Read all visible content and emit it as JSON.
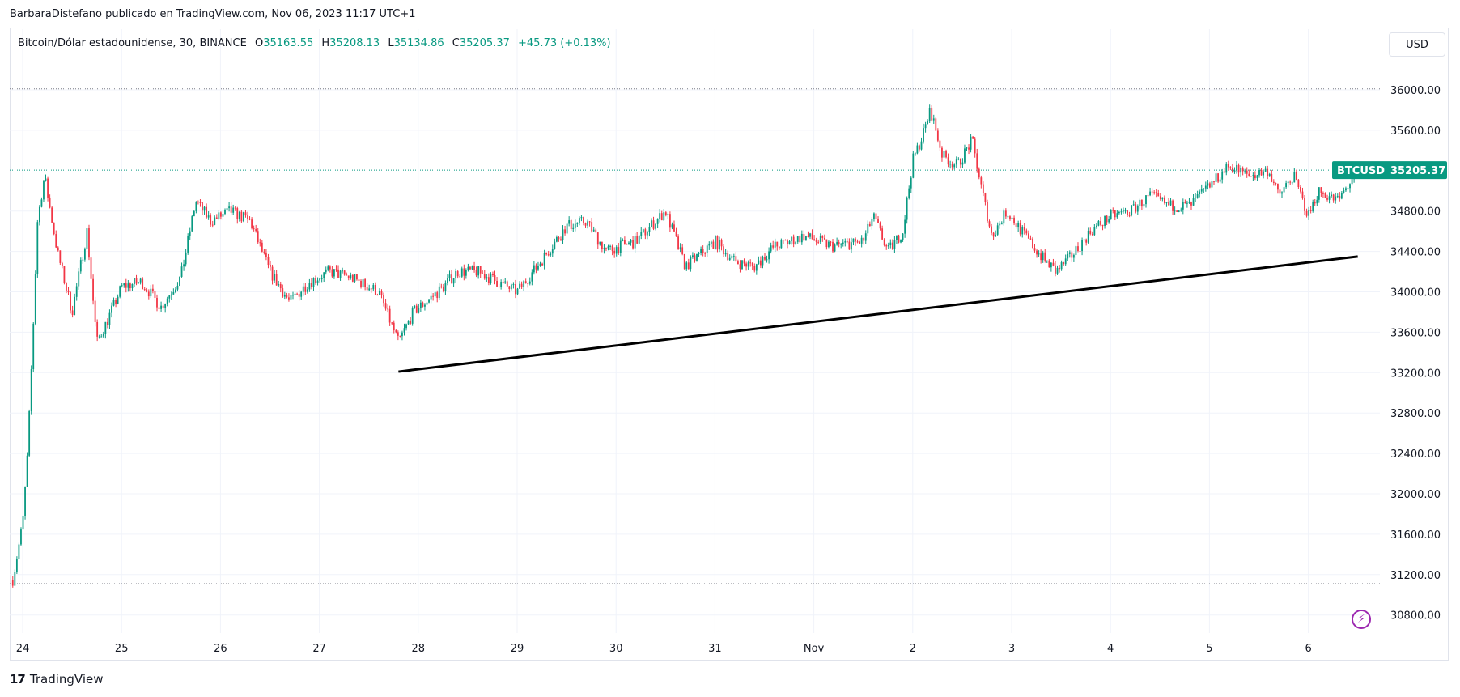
{
  "header": {
    "attribution": "BarbaraDistefano publicado en TradingView.com, Nov 06, 2023 11:17 UTC+1"
  },
  "legend": {
    "symbol": "Bitcoin/Dólar estadounidense, 30, BINANCE",
    "open_label": "O",
    "open": "35163.55",
    "high_label": "H",
    "high": "35208.13",
    "low_label": "L",
    "low": "35134.86",
    "close_label": "C",
    "close": "35205.37",
    "change": "+45.73 (+0.13%)"
  },
  "currency_button": "USD",
  "price_badge": {
    "symbol": "BTCUSD",
    "price": "35205.37"
  },
  "footer": {
    "logo_mark": "17",
    "logo_text": "TradingView"
  },
  "colors": {
    "up": "#089981",
    "down": "#f23645",
    "grid": "#f0f3fa",
    "trendline": "#000000",
    "badge": "#089981"
  },
  "icons": {
    "bolt": "lightning-icon"
  },
  "chart_data": {
    "type": "candlestick",
    "interval": "30",
    "y_ticks": [
      36000,
      35600,
      34800,
      34400,
      34000,
      33600,
      33200,
      32800,
      32400,
      32000,
      31600,
      31200,
      30800
    ],
    "y_tick_labels": [
      "36000.00",
      "35600.00",
      "34800.00",
      "34400.00",
      "34000.00",
      "33600.00",
      "33200.00",
      "32800.00",
      "32400.00",
      "32000.00",
      "31600.00",
      "31200.00",
      "30800.00"
    ],
    "ylim": [
      30700,
      36300
    ],
    "x_ticks": [
      "24",
      "25",
      "26",
      "27",
      "28",
      "29",
      "30",
      "31",
      "Nov",
      "2",
      "3",
      "4",
      "5",
      "6"
    ],
    "x_day_range": [
      0,
      13.95
    ],
    "horizontal_levels": [
      36010,
      35205.37,
      31110
    ],
    "trendline": [
      {
        "day": 3.8,
        "price": 33210
      },
      {
        "day": 13.5,
        "price": 34350
      }
    ],
    "close_path": [
      {
        "day": -0.1,
        "price": 31150
      },
      {
        "day": 0.0,
        "price": 31700
      },
      {
        "day": 0.05,
        "price": 32400
      },
      {
        "day": 0.1,
        "price": 33500
      },
      {
        "day": 0.15,
        "price": 34700
      },
      {
        "day": 0.22,
        "price": 35150
      },
      {
        "day": 0.35,
        "price": 34400
      },
      {
        "day": 0.5,
        "price": 33800
      },
      {
        "day": 0.65,
        "price": 34600
      },
      {
        "day": 0.75,
        "price": 33500
      },
      {
        "day": 0.85,
        "price": 33700
      },
      {
        "day": 1.0,
        "price": 34050
      },
      {
        "day": 1.2,
        "price": 34100
      },
      {
        "day": 1.4,
        "price": 33850
      },
      {
        "day": 1.6,
        "price": 34150
      },
      {
        "day": 1.75,
        "price": 34900
      },
      {
        "day": 1.9,
        "price": 34700
      },
      {
        "day": 2.1,
        "price": 34800
      },
      {
        "day": 2.3,
        "price": 34700
      },
      {
        "day": 2.5,
        "price": 34200
      },
      {
        "day": 2.7,
        "price": 33900
      },
      {
        "day": 2.9,
        "price": 34100
      },
      {
        "day": 3.1,
        "price": 34200
      },
      {
        "day": 3.3,
        "price": 34150
      },
      {
        "day": 3.6,
        "price": 34000
      },
      {
        "day": 3.8,
        "price": 33500
      },
      {
        "day": 3.95,
        "price": 33800
      },
      {
        "day": 4.2,
        "price": 34000
      },
      {
        "day": 4.4,
        "price": 34200
      },
      {
        "day": 4.6,
        "price": 34200
      },
      {
        "day": 4.8,
        "price": 34100
      },
      {
        "day": 5.0,
        "price": 34000
      },
      {
        "day": 5.2,
        "price": 34250
      },
      {
        "day": 5.5,
        "price": 34650
      },
      {
        "day": 5.7,
        "price": 34700
      },
      {
        "day": 5.9,
        "price": 34400
      },
      {
        "day": 6.2,
        "price": 34500
      },
      {
        "day": 6.5,
        "price": 34800
      },
      {
        "day": 6.7,
        "price": 34250
      },
      {
        "day": 7.0,
        "price": 34500
      },
      {
        "day": 7.2,
        "price": 34300
      },
      {
        "day": 7.4,
        "price": 34250
      },
      {
        "day": 7.6,
        "price": 34450
      },
      {
        "day": 7.9,
        "price": 34550
      },
      {
        "day": 8.2,
        "price": 34450
      },
      {
        "day": 8.5,
        "price": 34500
      },
      {
        "day": 8.6,
        "price": 34750
      },
      {
        "day": 8.75,
        "price": 34400
      },
      {
        "day": 8.9,
        "price": 34600
      },
      {
        "day": 9.0,
        "price": 35300
      },
      {
        "day": 9.1,
        "price": 35550
      },
      {
        "day": 9.18,
        "price": 35800
      },
      {
        "day": 9.3,
        "price": 35350
      },
      {
        "day": 9.45,
        "price": 35250
      },
      {
        "day": 9.6,
        "price": 35500
      },
      {
        "day": 9.7,
        "price": 35000
      },
      {
        "day": 9.8,
        "price": 34550
      },
      {
        "day": 9.95,
        "price": 34800
      },
      {
        "day": 10.1,
        "price": 34600
      },
      {
        "day": 10.3,
        "price": 34350
      },
      {
        "day": 10.45,
        "price": 34200
      },
      {
        "day": 10.6,
        "price": 34350
      },
      {
        "day": 10.8,
        "price": 34600
      },
      {
        "day": 11.0,
        "price": 34750
      },
      {
        "day": 11.2,
        "price": 34800
      },
      {
        "day": 11.4,
        "price": 34950
      },
      {
        "day": 11.6,
        "price": 34850
      },
      {
        "day": 11.8,
        "price": 34850
      },
      {
        "day": 12.0,
        "price": 35050
      },
      {
        "day": 12.2,
        "price": 35250
      },
      {
        "day": 12.4,
        "price": 35150
      },
      {
        "day": 12.6,
        "price": 35200
      },
      {
        "day": 12.7,
        "price": 34950
      },
      {
        "day": 12.85,
        "price": 35150
      },
      {
        "day": 13.0,
        "price": 34750
      },
      {
        "day": 13.1,
        "price": 35000
      },
      {
        "day": 13.3,
        "price": 34900
      },
      {
        "day": 13.5,
        "price": 35205
      }
    ]
  }
}
